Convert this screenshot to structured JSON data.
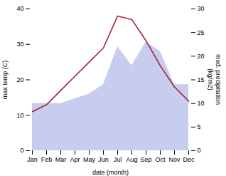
{
  "chart_data": {
    "type": "line",
    "xlabel": "date (month)",
    "ylabel": "max temp (C)",
    "y2label": "med. precipitation\n(kg/m2)",
    "categories": [
      "Jan",
      "Feb",
      "Mar",
      "Apr",
      "May",
      "Jun",
      "Jul",
      "Aug",
      "Sep",
      "Oct",
      "Nov",
      "Dec"
    ],
    "series": [
      {
        "type": "area",
        "axis": "y2",
        "color": "#c8ccee",
        "values": [
          10,
          10,
          10,
          11,
          12,
          14,
          22,
          18,
          23,
          21,
          14,
          14
        ]
      },
      {
        "type": "line",
        "color": "#aa2233",
        "values": [
          11,
          13,
          17,
          21,
          25,
          29,
          38,
          37,
          31,
          24,
          18,
          14
        ]
      }
    ],
    "ylim": [
      0,
      40
    ],
    "yticks": [
      0,
      10,
      20,
      30,
      40
    ],
    "y2lim": [
      0,
      30
    ],
    "y2ticks": [
      0,
      5,
      10,
      15,
      20,
      25,
      30
    ],
    "grid": false
  }
}
